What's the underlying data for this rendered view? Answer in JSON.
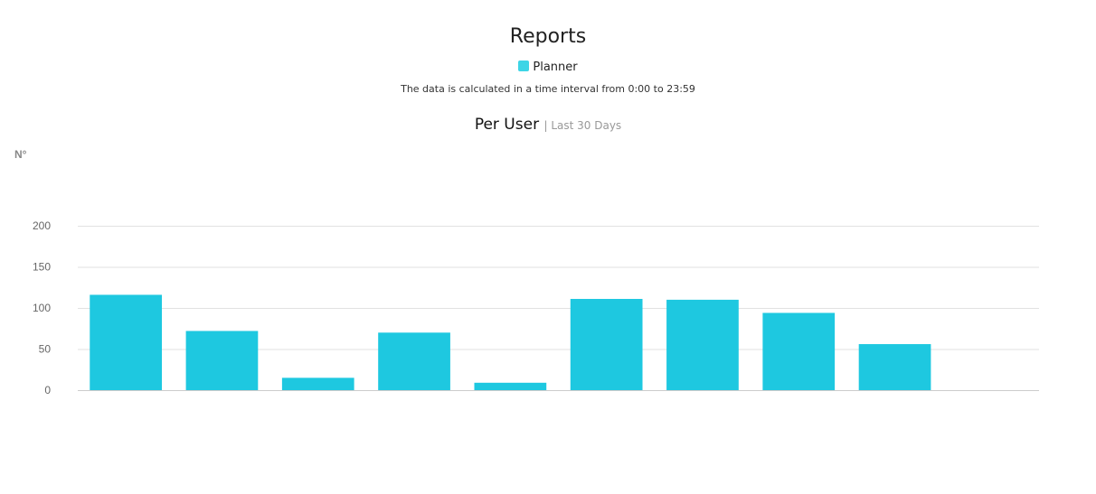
{
  "header": {
    "title": "Reports",
    "subtitle": "The data is calculated in a time interval from 0:00 to 23:59"
  },
  "legend": {
    "label": "Planner",
    "color": "#3dd5e6"
  },
  "section": {
    "title": "Per User",
    "period": "| Last 30 Days"
  },
  "chart_data": {
    "type": "bar",
    "ylabel": "N°",
    "ylim": [
      0,
      200
    ],
    "yticks": [
      0,
      50,
      100,
      150,
      200
    ],
    "grid": true,
    "categories": [
      "",
      "",
      "",
      "",
      "",
      "",
      "",
      "",
      "",
      ""
    ],
    "series": [
      {
        "name": "Planner",
        "color": "#1ec8e0",
        "values": [
          116,
          72,
          15,
          70,
          9,
          111,
          110,
          94,
          56,
          0
        ]
      }
    ]
  }
}
